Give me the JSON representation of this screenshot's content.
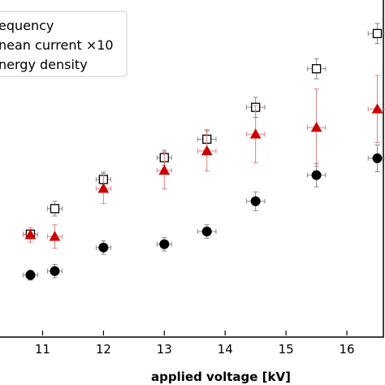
{
  "chart_data": {
    "type": "scatter",
    "xlabel": "applied voltage [kV]",
    "ylabel": "",
    "xlim": [
      10.3,
      16.6
    ],
    "ylim": [
      0,
      10
    ],
    "xticks": [
      11,
      12,
      13,
      14,
      15,
      16
    ],
    "xtick_labels": [
      "11",
      "12",
      "13",
      "14",
      "15",
      "16"
    ],
    "grid": false,
    "legend_position": "top-left",
    "series": [
      {
        "name": "equency",
        "marker": "open-square",
        "color": "#000000",
        "x": [
          10.8,
          11.2,
          12.0,
          13.0,
          13.7,
          14.5,
          15.5,
          16.5
        ],
        "y": [
          3.02,
          3.78,
          4.65,
          5.3,
          5.85,
          6.8,
          7.95,
          9.0
        ],
        "yerr": [
          0.12,
          0.22,
          0.22,
          0.22,
          0.28,
          0.3,
          0.3,
          0.3
        ],
        "xerr": [
          0.12,
          0.12,
          0.12,
          0.12,
          0.15,
          0.15,
          0.15,
          0.15
        ]
      },
      {
        "name": "nean current ×10",
        "marker": "filled-triangle",
        "color": "#cc0000",
        "x": [
          10.8,
          11.2,
          12.0,
          13.0,
          13.7,
          14.5,
          15.5,
          16.5
        ],
        "y": [
          3.0,
          2.95,
          4.38,
          4.92,
          5.5,
          6.0,
          6.2,
          6.75
        ],
        "yerr": [
          0.22,
          0.35,
          0.45,
          0.55,
          0.6,
          0.85,
          1.15,
          1.0
        ],
        "xerr": [
          0.12,
          0.12,
          0.12,
          0.12,
          0.15,
          0.15,
          0.15,
          0.15
        ]
      },
      {
        "name": "nergy density",
        "marker": "filled-circle",
        "color": "#000000",
        "x": [
          10.8,
          11.2,
          12.0,
          13.0,
          13.7,
          14.5,
          15.5,
          16.5
        ],
        "y": [
          1.8,
          1.92,
          2.62,
          2.72,
          3.1,
          4.0,
          4.78,
          5.28
        ],
        "yerr": [
          0.15,
          0.2,
          0.2,
          0.2,
          0.2,
          0.28,
          0.35,
          0.4
        ],
        "xerr": [
          0.12,
          0.12,
          0.12,
          0.12,
          0.15,
          0.15,
          0.15,
          0.15
        ]
      }
    ]
  }
}
